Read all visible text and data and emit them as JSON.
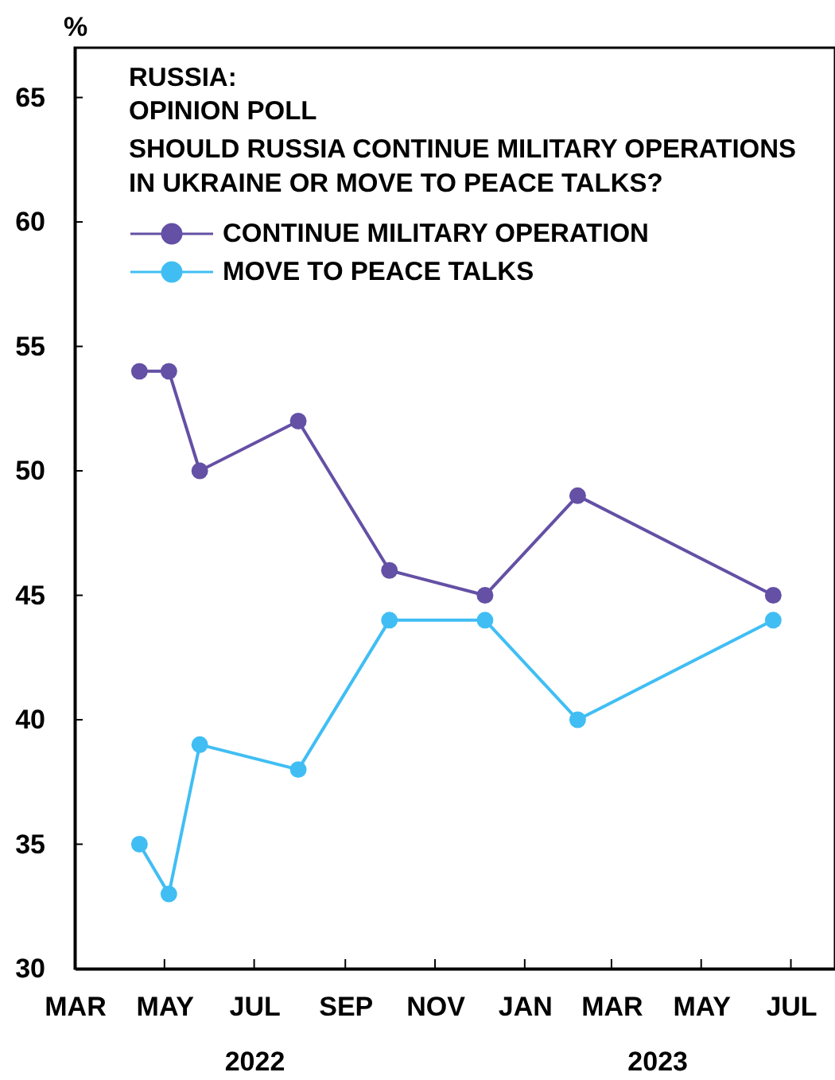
{
  "chart_data": {
    "type": "line",
    "title": "RUSSIA:\nOPINION POLL",
    "subtitle": "SHOULD RUSSIA CONTINUE MILITARY OPERATIONS\nIN UKRAINE OR MOVE TO PEACE TALKS?",
    "ylabel": "%",
    "x": [
      "2022-04-14",
      "2022-05-04",
      "2022-05-25",
      "2022-07-31",
      "2022-10-01",
      "2022-12-05",
      "2023-02-06",
      "2023-06-19"
    ],
    "series": [
      {
        "name": "CONTINUE MILITARY OPERATION",
        "color": "#6450a5",
        "values": [
          54,
          54,
          50,
          52,
          46,
          45,
          49,
          45
        ]
      },
      {
        "name": "MOVE TO PEACE TALKS",
        "color": "#40bef4",
        "values": [
          35,
          33,
          39,
          38,
          44,
          44,
          40,
          44
        ]
      }
    ],
    "xlim": [
      "2022-03-01",
      "2023-07-31"
    ],
    "xticks": [
      {
        "value": "2022-03-01",
        "label": "MAR"
      },
      {
        "value": "2022-05-01",
        "label": "MAY"
      },
      {
        "value": "2022-07-01",
        "label": "JUL"
      },
      {
        "value": "2022-09-01",
        "label": "SEP"
      },
      {
        "value": "2022-11-01",
        "label": "NOV"
      },
      {
        "value": "2023-01-01",
        "label": "JAN"
      },
      {
        "value": "2023-03-01",
        "label": "MAR"
      },
      {
        "value": "2023-05-01",
        "label": "MAY"
      },
      {
        "value": "2023-07-01",
        "label": "JUL"
      }
    ],
    "ylim": [
      30,
      67
    ],
    "yticks": [
      30,
      35,
      40,
      45,
      50,
      55,
      60,
      65
    ],
    "legend": "top left",
    "marker": "circle",
    "line_style": "solid",
    "annotations": [
      "2022",
      "2023"
    ]
  }
}
